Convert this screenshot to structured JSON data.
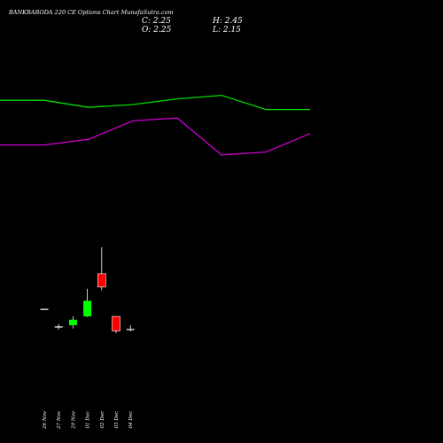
{
  "chart_data": {
    "type": "candlestick",
    "title": "BANKBARODA 220 CE Options Chart MunafaSutra.com",
    "ohlc": {
      "open": "O: 2.25",
      "high": "H: 2.45",
      "close": "C: 2.25",
      "low": "L: 2.15"
    },
    "categories": [
      "26 Nov",
      "27 Nov",
      "29 Nov",
      "01 Dec",
      "02 Dec",
      "03 Dec",
      "04 Dec"
    ],
    "candles": [
      {
        "date": "26 Nov",
        "open": 3.9,
        "high": 3.9,
        "low": 3.9,
        "close": 3.9
      },
      {
        "date": "27 Nov",
        "open": 3.2,
        "high": 3.3,
        "low": 3.07,
        "close": 3.2
      },
      {
        "date": "29 Nov",
        "open": 3.25,
        "high": 3.6,
        "low": 3.12,
        "close": 3.47
      },
      {
        "date": "01 Dec",
        "open": 3.6,
        "high": 4.7,
        "low": 3.57,
        "close": 4.22
      },
      {
        "date": "02 Dec",
        "open": 5.3,
        "high": 6.35,
        "low": 4.64,
        "close": 4.77
      },
      {
        "date": "03 Dec",
        "open": 3.6,
        "high": 3.6,
        "low": 2.93,
        "close": 3.02
      },
      {
        "date": "04 Dec",
        "open": 3.1,
        "high": 3.25,
        "low": 3.0,
        "close": 3.1
      }
    ],
    "price_range": [
      0.5,
      7.2
    ],
    "indicator_series": [
      {
        "color": "#00dd00",
        "x": [
          0,
          1,
          2,
          3,
          4,
          5,
          6,
          7
        ],
        "values": [
          0.855,
          0.855,
          0.805,
          0.825,
          0.865,
          0.89,
          0.79,
          0.79
        ]
      },
      {
        "color": "#cc00cc",
        "x": [
          0,
          1,
          2,
          3,
          4,
          5,
          6,
          7
        ],
        "values": [
          0.54,
          0.54,
          0.58,
          0.71,
          0.73,
          0.47,
          0.49,
          0.62
        ]
      }
    ],
    "indicator_range": [
      0,
      1
    ],
    "colors": {
      "up": "#00ff00",
      "down": "#ff0000",
      "doji": "#ffffff",
      "wick": "#ffffff"
    }
  }
}
